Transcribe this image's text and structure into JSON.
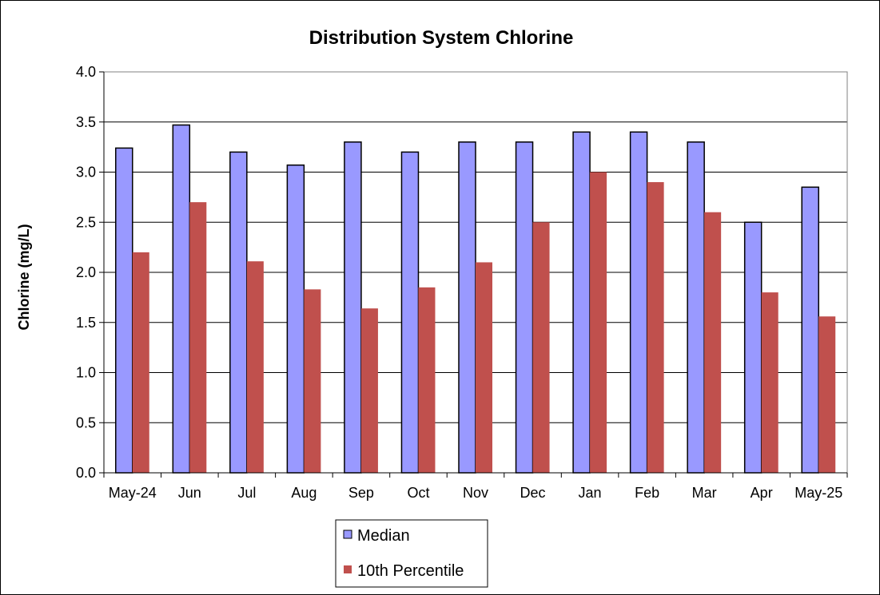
{
  "chart_data": {
    "type": "bar",
    "title": "Distribution System Chlorine",
    "xlabel": "",
    "ylabel": "Chlorine (mg/L)",
    "ylim": [
      0,
      4.0
    ],
    "yticks": [
      "0.0",
      "0.5",
      "1.0",
      "1.5",
      "2.0",
      "2.5",
      "3.0",
      "3.5",
      "4.0"
    ],
    "categories": [
      "May-24",
      "Jun",
      "Jul",
      "Aug",
      "Sep",
      "Oct",
      "Nov",
      "Dec",
      "Jan",
      "Feb",
      "Mar",
      "Apr",
      "May-25"
    ],
    "series": [
      {
        "name": "Median",
        "color": "#9999ff",
        "values": [
          3.24,
          3.47,
          3.2,
          3.07,
          3.3,
          3.2,
          3.3,
          3.3,
          3.4,
          3.4,
          3.3,
          2.5,
          2.85
        ]
      },
      {
        "name": "10th Percentile",
        "color": "#c0504d",
        "values": [
          2.2,
          2.7,
          2.11,
          1.83,
          1.64,
          1.85,
          2.1,
          2.5,
          3.0,
          2.9,
          2.6,
          1.8,
          1.56
        ]
      }
    ],
    "grid": true,
    "legend": "bottom-center"
  }
}
